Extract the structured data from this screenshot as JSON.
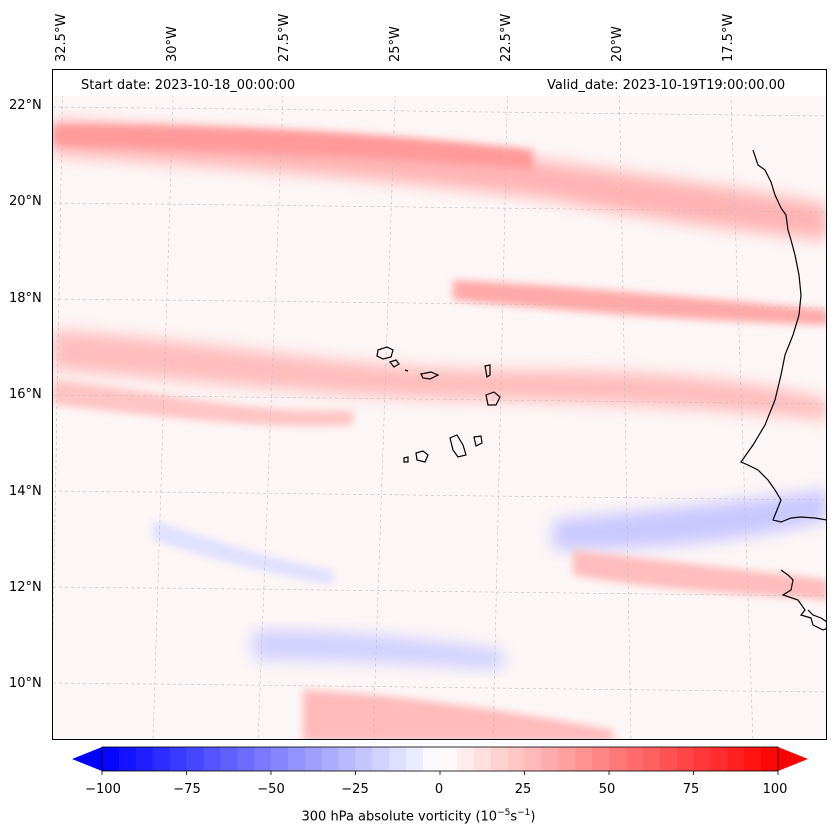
{
  "map": {
    "start_date_label": "Start date: 2023-10-18_00:00:00",
    "valid_date_label": "Valid_date: 2023-10-19T19:00:00.00",
    "longitude_labels": [
      "32.5°W",
      "30°W",
      "27.5°W",
      "25°W",
      "22.5°W",
      "20°W",
      "17.5°W"
    ],
    "latitude_labels": [
      "22°N",
      "20°N",
      "18°N",
      "16°N",
      "14°N",
      "12°N",
      "10°N"
    ],
    "extent": {
      "lon_min": -33.0,
      "lon_max": -15.8,
      "lat_min": 8.8,
      "lat_max": 22.8
    }
  },
  "colorbar": {
    "min": -100,
    "max": 100,
    "step": 5,
    "tick_labels": [
      "−100",
      "−75",
      "−50",
      "−25",
      "0",
      "25",
      "50",
      "75",
      "100"
    ],
    "label": "300 hPa absolute vorticity (10",
    "label_exp1": "−5",
    "label_mid": "s",
    "label_exp2": "−1",
    "label_end": ")",
    "colors": {
      "negative": "#0000ff",
      "zero": "#ffffff",
      "positive": "#ff0000"
    }
  }
}
